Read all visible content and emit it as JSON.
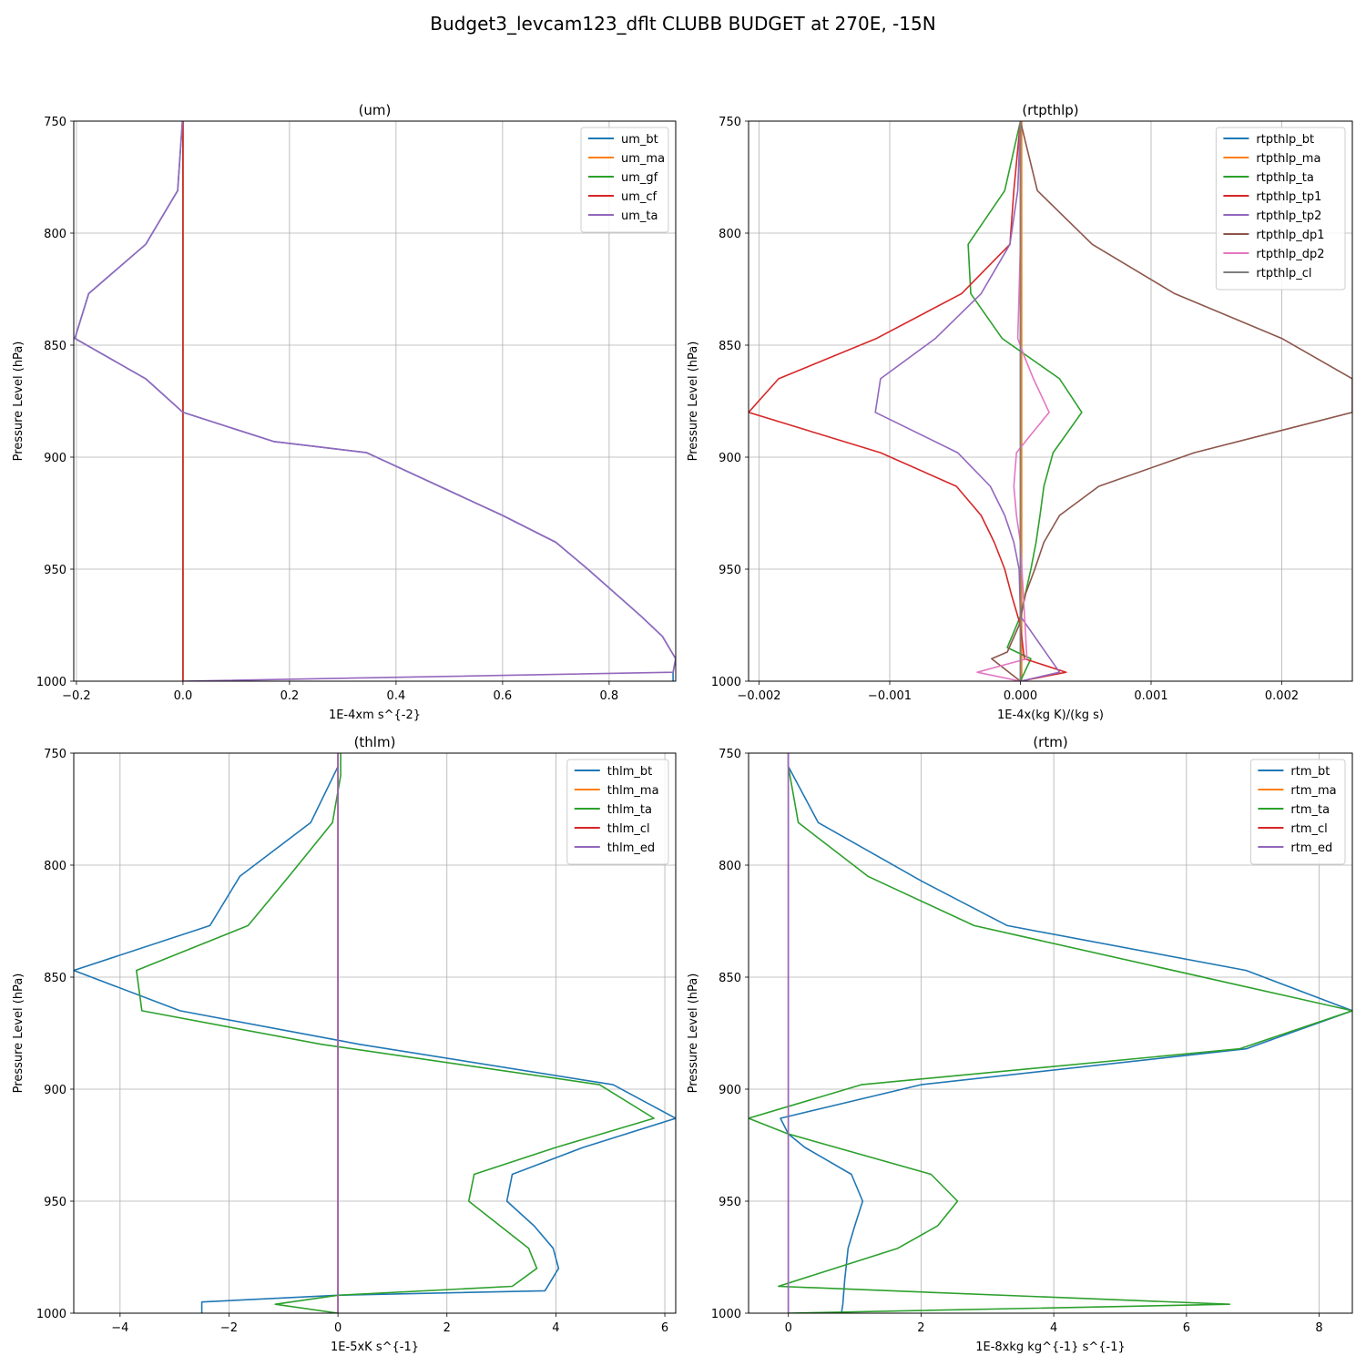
{
  "figure": {
    "suptitle": "Budget3_levcam123_dflt CLUBB BUDGET at 270E, -15N"
  },
  "chart_data": [
    {
      "type": "line",
      "title": "(um)",
      "xlabel": "1E-4xm s^{-2}",
      "ylabel": "Pressure Level (hPa)",
      "xlim": [
        -0.205,
        0.925
      ],
      "ylim": [
        1000,
        750
      ],
      "xticks": [
        -0.2,
        0.0,
        0.2,
        0.4,
        0.6,
        0.8
      ],
      "xtick_labels": [
        "−0.2",
        "0.0",
        "0.2",
        "0.4",
        "0.6",
        "0.8"
      ],
      "yticks": [
        750,
        800,
        850,
        900,
        950,
        1000
      ],
      "grid": true,
      "legend_loc": "upper right",
      "series": [
        {
          "name": "um_bt",
          "color": "#1f77b4",
          "x": [
            -0.001,
            -0.01,
            -0.07,
            -0.177,
            -0.203,
            -0.07,
            0.0,
            0.17,
            0.345,
            0.6,
            0.7,
            0.76,
            0.86,
            0.9,
            0.925,
            0.92,
            0.92
          ],
          "y": [
            750,
            781,
            805,
            827,
            847,
            865,
            880,
            893,
            898,
            926,
            938,
            950,
            971,
            980,
            990,
            996,
            1000
          ]
        },
        {
          "name": "um_ma",
          "color": "#ff7f0e",
          "x": [
            0,
            0
          ],
          "y": [
            750,
            1000
          ]
        },
        {
          "name": "um_gf",
          "color": "#2ca02c",
          "x": [
            0,
            0
          ],
          "y": [
            750,
            1000
          ]
        },
        {
          "name": "um_cf",
          "color": "#d62728",
          "x": [
            0,
            0
          ],
          "y": [
            750,
            1000
          ]
        },
        {
          "name": "um_ta",
          "color": "#9467bd",
          "x": [
            -0.001,
            -0.01,
            -0.07,
            -0.177,
            -0.203,
            -0.07,
            0.0,
            0.17,
            0.345,
            0.6,
            0.7,
            0.76,
            0.86,
            0.9,
            0.925,
            0.92,
            0.0
          ],
          "y": [
            750,
            781,
            805,
            827,
            847,
            865,
            880,
            893,
            898,
            926,
            938,
            950,
            971,
            980,
            990,
            996,
            1000
          ]
        }
      ]
    },
    {
      "type": "line",
      "title": "(rtpthlp)",
      "xlabel": "1E-4x(kg K)/(kg s)",
      "ylabel": "Pressure Level (hPa)",
      "xlim": [
        -0.00208,
        0.00254
      ],
      "ylim": [
        1000,
        750
      ],
      "xticks": [
        -0.002,
        -0.001,
        0.0,
        0.001,
        0.002
      ],
      "xtick_labels": [
        "−0.002",
        "−0.001",
        "0.000",
        "0.001",
        "0.002"
      ],
      "yticks": [
        750,
        800,
        850,
        900,
        950,
        1000
      ],
      "grid": true,
      "legend_loc": "upper right",
      "series": [
        {
          "name": "rtpthlp_bt",
          "color": "#1f77b4",
          "x": [
            0.0,
            0.0
          ],
          "y": [
            750,
            1000
          ]
        },
        {
          "name": "rtpthlp_ma",
          "color": "#ff7f0e",
          "x": [
            1e-05,
            1e-05
          ],
          "y": [
            750,
            1000
          ]
        },
        {
          "name": "rtpthlp_ta",
          "color": "#2ca02c",
          "x": [
            0.0,
            -0.00012,
            -0.0004,
            -0.00038,
            -0.00014,
            0.0003,
            0.00047,
            0.00025,
            0.00018,
            0.00015,
            0.00012,
            8e-05,
            0.0,
            -0.0001,
            8e-05,
            0.0
          ],
          "y": [
            750,
            781,
            805,
            827,
            847,
            865,
            880,
            898,
            913,
            926,
            938,
            950,
            971,
            985,
            990,
            1000
          ]
        },
        {
          "name": "rtpthlp_tp1",
          "color": "#d62728",
          "x": [
            0.0,
            -5e-05,
            -8e-05,
            -0.00045,
            -0.0011,
            -0.00185,
            -0.00208,
            -0.00107,
            -0.00049,
            -0.0003,
            -0.0002,
            -0.00012,
            -7e-05,
            0.0,
            3e-05,
            0.00035,
            0.0
          ],
          "y": [
            750,
            781,
            805,
            827,
            847,
            865,
            880,
            898,
            913,
            926,
            938,
            950,
            961,
            975,
            990,
            996,
            1000
          ]
        },
        {
          "name": "rtpthlp_tp2",
          "color": "#9467bd",
          "x": [
            0.0,
            -2e-05,
            -8e-05,
            -0.0003,
            -0.00065,
            -0.00107,
            -0.00111,
            -0.00048,
            -0.00023,
            -0.00012,
            -5e-05,
            -1e-05,
            0.0,
            0.0003,
            0.0
          ],
          "y": [
            750,
            781,
            805,
            827,
            847,
            865,
            880,
            898,
            913,
            926,
            938,
            950,
            971,
            996,
            1000
          ]
        },
        {
          "name": "rtpthlp_dp1",
          "color": "#8c564b",
          "x": [
            0.0,
            0.00013,
            0.00055,
            0.00118,
            0.002,
            0.00254,
            0.00254,
            0.00133,
            0.0006,
            0.0003,
            0.00018,
            0.00011,
            4e-05,
            -1e-05,
            -0.0001,
            -0.00022,
            0.0
          ],
          "y": [
            750,
            781,
            805,
            827,
            847,
            865,
            880,
            898,
            913,
            926,
            938,
            950,
            961,
            975,
            987,
            990,
            1000
          ]
        },
        {
          "name": "rtpthlp_dp2",
          "color": "#e377c2",
          "x": [
            0.0,
            0.0,
            -2e-05,
            3e-05,
            0.0001,
            0.00022,
            8e-05,
            -3e-05,
            -5e-05,
            -3e-05,
            0.0,
            5e-05,
            -0.00033,
            0.0
          ],
          "y": [
            750,
            805,
            847,
            855,
            865,
            880,
            890,
            898,
            913,
            926,
            938,
            990,
            996,
            1000
          ]
        },
        {
          "name": "rtpthlp_cl",
          "color": "#7f7f7f",
          "x": [
            0.0,
            0.0
          ],
          "y": [
            750,
            1000
          ]
        }
      ]
    },
    {
      "type": "line",
      "title": "(thlm)",
      "xlabel": "1E-5xK s^{-1}",
      "ylabel": "Pressure Level (hPa)",
      "xlim": [
        -4.85,
        6.2
      ],
      "ylim": [
        1000,
        750
      ],
      "xticks": [
        -4,
        -2,
        0,
        2,
        4,
        6
      ],
      "xtick_labels": [
        "−4",
        "−2",
        "0",
        "2",
        "4",
        "6"
      ],
      "yticks": [
        750,
        800,
        850,
        900,
        950,
        1000
      ],
      "grid": true,
      "legend_loc": "upper right",
      "series": [
        {
          "name": "thlm_bt",
          "color": "#1f77b4",
          "x": [
            0.0,
            -0.5,
            -1.8,
            -2.35,
            -4.85,
            -2.9,
            0.4,
            5.05,
            6.2,
            4.5,
            3.2,
            3.1,
            3.6,
            3.95,
            4.05,
            3.8,
            0.0,
            -2.5,
            -2.5
          ],
          "y": [
            756,
            781,
            805,
            827,
            847,
            865,
            880,
            898,
            913,
            926,
            938,
            950,
            961,
            971,
            980,
            990,
            992,
            995,
            1000
          ]
        },
        {
          "name": "thlm_ma",
          "color": "#ff7f0e",
          "x": [
            0,
            0
          ],
          "y": [
            750,
            1000
          ]
        },
        {
          "name": "thlm_ta",
          "color": "#2ca02c",
          "x": [
            0.05,
            0.05,
            -0.1,
            -0.9,
            -1.65,
            -3.7,
            -3.6,
            -0.3,
            4.8,
            5.8,
            4.0,
            2.5,
            2.4,
            3.5,
            3.65,
            3.2,
            0.0,
            -1.15,
            0.0
          ],
          "y": [
            750,
            760,
            781,
            805,
            827,
            847,
            865,
            880,
            898,
            913,
            926,
            938,
            950,
            971,
            980,
            988,
            992,
            996,
            1000
          ]
        },
        {
          "name": "thlm_cl",
          "color": "#d62728",
          "x": [
            0,
            0
          ],
          "y": [
            750,
            1000
          ]
        },
        {
          "name": "thlm_ed",
          "color": "#9467bd",
          "x": [
            0,
            0
          ],
          "y": [
            750,
            1000
          ]
        }
      ]
    },
    {
      "type": "line",
      "title": "(rtm)",
      "xlabel": "1E-8xkg kg^{-1} s^{-1}",
      "ylabel": "Pressure Level (hPa)",
      "xlim": [
        -0.6,
        8.5
      ],
      "ylim": [
        1000,
        750
      ],
      "xticks": [
        0,
        2,
        4,
        6,
        8
      ],
      "xtick_labels": [
        "0",
        "2",
        "4",
        "6",
        "8"
      ],
      "yticks": [
        750,
        800,
        850,
        900,
        950,
        1000
      ],
      "grid": true,
      "legend_loc": "upper right",
      "series": [
        {
          "name": "rtm_bt",
          "color": "#1f77b4",
          "x": [
            0.0,
            0.0,
            0.45,
            2.0,
            3.3,
            6.9,
            8.5,
            6.9,
            2.0,
            -0.12,
            0.0,
            0.25,
            0.95,
            1.12,
            1.0,
            0.9,
            0.85,
            0.82,
            0.8
          ],
          "y": [
            750,
            756,
            781,
            807,
            827,
            847,
            865,
            882,
            898,
            913,
            920,
            926,
            938,
            950,
            961,
            971,
            985,
            996,
            1000
          ]
        },
        {
          "name": "rtm_ma",
          "color": "#ff7f0e",
          "x": [
            0,
            0
          ],
          "y": [
            750,
            1000
          ]
        },
        {
          "name": "rtm_ta",
          "color": "#2ca02c",
          "x": [
            0.0,
            0.0,
            0.15,
            1.2,
            2.8,
            8.5,
            6.8,
            1.1,
            -0.6,
            0.0,
            2.15,
            2.55,
            2.25,
            1.65,
            -0.15,
            6.65,
            0.0
          ],
          "y": [
            750,
            756,
            781,
            805,
            827,
            865,
            882,
            898,
            913,
            920,
            938,
            950,
            961,
            971,
            988,
            996,
            1000
          ]
        },
        {
          "name": "rtm_cl",
          "color": "#d62728",
          "x": [
            0,
            0
          ],
          "y": [
            750,
            1000
          ]
        },
        {
          "name": "rtm_ed",
          "color": "#9467bd",
          "x": [
            0,
            0
          ],
          "y": [
            750,
            1000
          ]
        }
      ]
    }
  ]
}
